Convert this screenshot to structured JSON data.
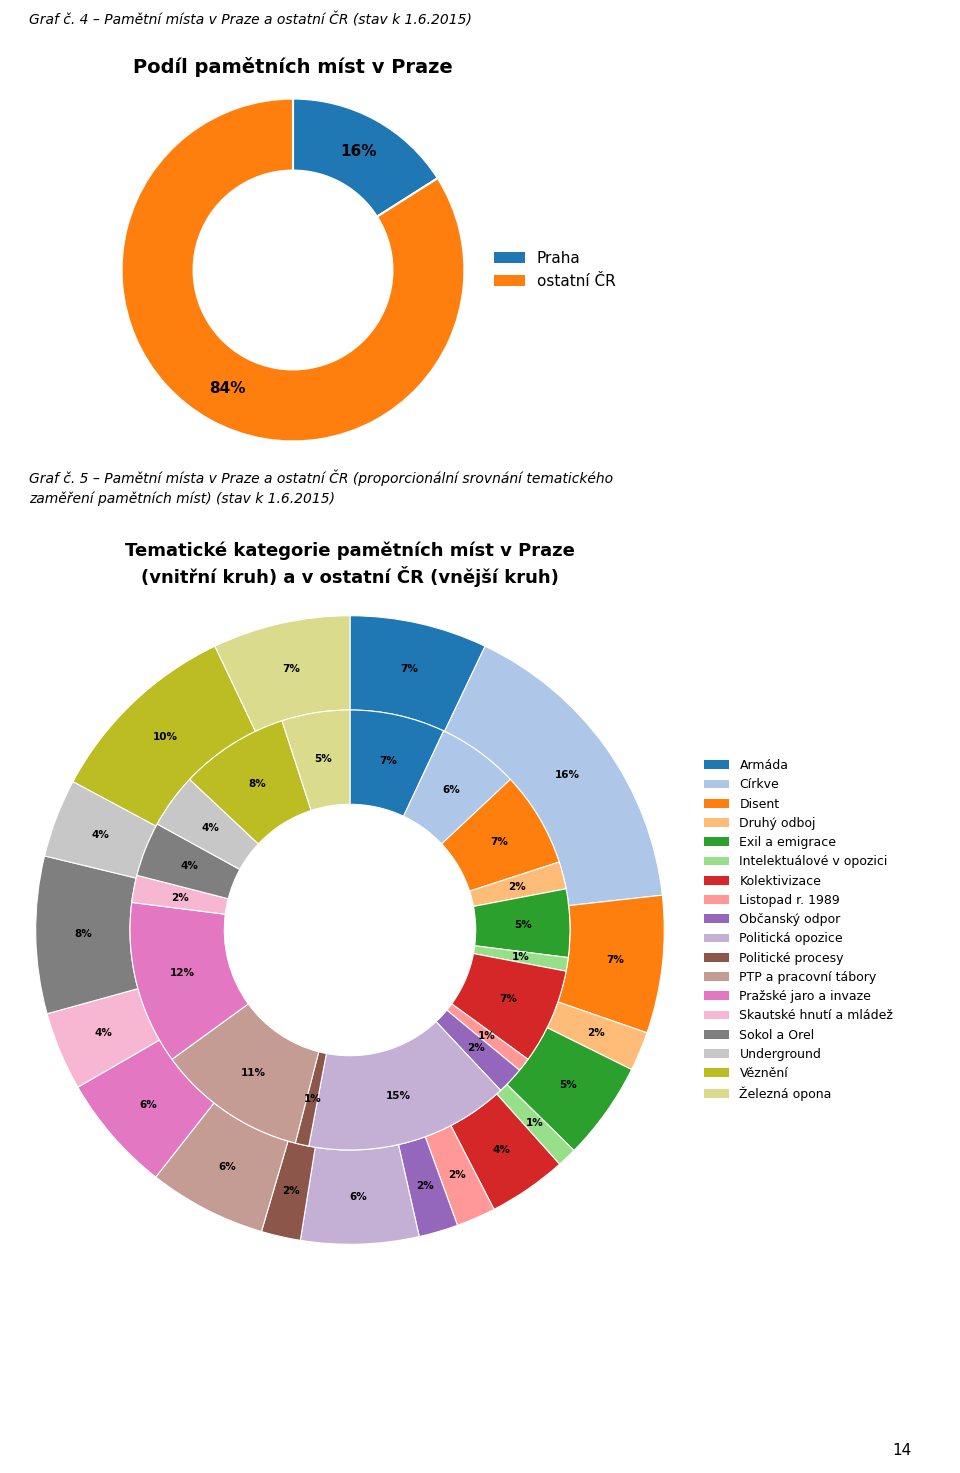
{
  "annotations": [
    "14"
  ],
  "chart_data": [
    {
      "type": "pie",
      "title": "Podíl pamětních míst v Praze",
      "annotations": [
        "Graf č. 4 – Pamětní místa v Praze a ostatní ČR (stav k 1.6.2015)"
      ],
      "categories": [
        "Praha",
        "ostatní ČR"
      ],
      "values": [
        16,
        84
      ],
      "value_labels": [
        "16%",
        "84%"
      ],
      "data_labels": true,
      "legend": "center left"
    },
    {
      "type": "pie",
      "title": "Tematické kategorie pamětních míst v Praze\n(vnitřní kruh) a v ostatní ČR (vnější kruh)",
      "annotations": [
        "Graf č. 5 – Pamětní místa v Praze a ostatní ČR (proporcionální srovnání tematického",
        "zaměření pamětních míst) (stav k 1.6.2015)"
      ],
      "categories": [
        "Armáda",
        "Církve",
        "Disent",
        "Druhý odboj",
        "Exil a emigrace",
        "Intelektuálové v opozici",
        "Kolektivizace",
        "Listopad r. 1989",
        "Občanský odpor",
        "Politická opozice",
        "Politické procesy",
        "PTP a pracovní tábory",
        "Pražské jaro a invaze",
        "Skautské hnutí a mládež",
        "Sokol a Orel",
        "Underground",
        "Věznění",
        "Železná opona"
      ],
      "series": [
        {
          "values": [
            7,
            16,
            7,
            2,
            5,
            1,
            4,
            2,
            2,
            6,
            2,
            6,
            6,
            4,
            8,
            4,
            10,
            7
          ],
          "value_labels": [
            "7%",
            "16%",
            "7%",
            "2%",
            "5%",
            "1%",
            "4%",
            "2%",
            "2%",
            "6%",
            "2%",
            "6%",
            "6%",
            "4%",
            "8%",
            "4%",
            "10%",
            "7%"
          ]
        },
        {
          "values": [
            7,
            6,
            7,
            2,
            5,
            1,
            7,
            1,
            2,
            15,
            1,
            11,
            12,
            2,
            4,
            4,
            8,
            5
          ],
          "value_labels": [
            "7%",
            "6%",
            "7%",
            "2%",
            "5%",
            "1%",
            "7%",
            "1%",
            "2%",
            "15%",
            "1%",
            "11%",
            "12%",
            "2%",
            "4%",
            "4%",
            "8%",
            "5%"
          ]
        }
      ],
      "data_labels": true,
      "legend": "center left"
    }
  ]
}
